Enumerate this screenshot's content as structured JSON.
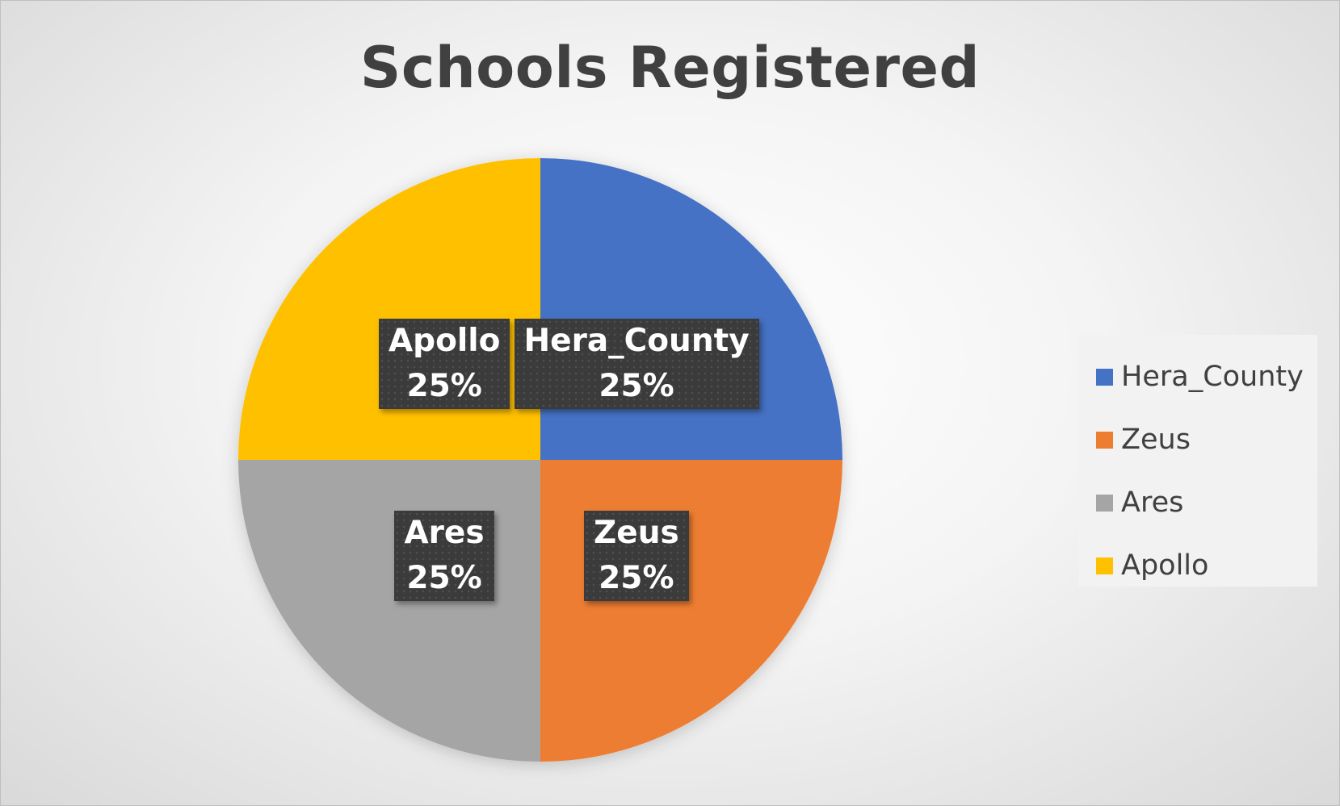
{
  "chart_data": {
    "type": "pie",
    "title": "Schools Registered",
    "categories": [
      "Hera_County",
      "Zeus",
      "Ares",
      "Apollo"
    ],
    "values": [
      25,
      25,
      25,
      25
    ],
    "data_labels": [
      "25%",
      "25%",
      "25%",
      "25%"
    ],
    "colors": [
      "#4472C4",
      "#ED7D31",
      "#A5A5A5",
      "#FFC000"
    ],
    "legend_position": "right"
  }
}
